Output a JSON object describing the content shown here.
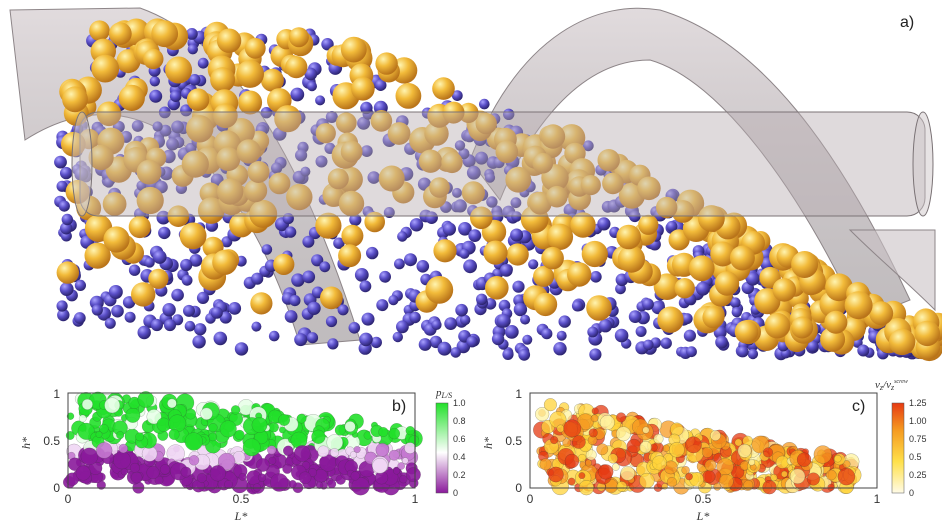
{
  "panels": {
    "a": {
      "label": "a)"
    },
    "b": {
      "label": "b)",
      "xlabel": "L*",
      "ylabel": "h*",
      "xticks": [
        "0",
        "0.5",
        "1"
      ],
      "yticks": [
        "0",
        "0.5",
        "1"
      ],
      "colorbar": {
        "title": "p",
        "title_sub": "L/S",
        "ticks": [
          "0",
          "0.2",
          "0.4",
          "0.6",
          "0.8",
          "1.0"
        ],
        "colors": [
          "#8a1a9b",
          "#ffffff",
          "#22e02a"
        ]
      }
    },
    "c": {
      "label": "c)",
      "xlabel": "L*",
      "ylabel": "h*",
      "xticks": [
        "0",
        "0.5",
        "1"
      ],
      "yticks": [
        "0",
        "0.5",
        "1"
      ],
      "colorbar": {
        "title": "v",
        "title_sub": "z",
        "title_mid": "/v",
        "title_sub2": "z",
        "title_sup": "screw",
        "ticks": [
          "0",
          "0.25",
          "0.5",
          "0.75",
          "1.00",
          "1.25"
        ],
        "colors": [
          "#fffbe6",
          "#ffe04a",
          "#f59a20",
          "#e63a12"
        ]
      }
    }
  },
  "colors": {
    "small_particle": "#5a4fc8",
    "large_particle": "#f0b83a",
    "screw": "#bfb6b8"
  }
}
